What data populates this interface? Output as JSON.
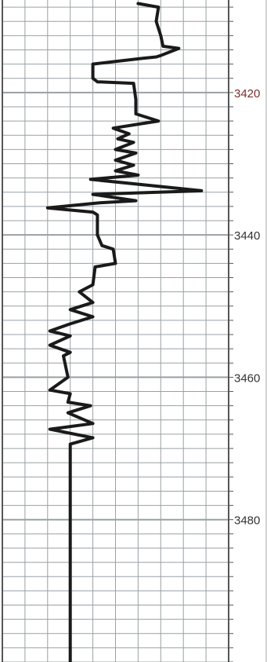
{
  "chart_data": {
    "type": "line",
    "orientation": "vertical-depth",
    "ylim": [
      3407,
      3500
    ],
    "xlim": [
      0,
      10
    ],
    "grid": true,
    "y_ticks": [
      {
        "value": 3420,
        "label": "3420"
      },
      {
        "value": 3440,
        "label": "3440"
      },
      {
        "value": 3460,
        "label": "3460"
      },
      {
        "value": 3480,
        "label": "3480"
      }
    ],
    "colors": {
      "curve": "#1a1a1a",
      "grid": "#9aa0a4",
      "label": "#333333",
      "label_accent": "#7a2e2e",
      "track_border": "#555555"
    },
    "series": [
      {
        "points": [
          [
            6.0,
            3407.5
          ],
          [
            6.9,
            3408.0
          ],
          [
            6.8,
            3410
          ],
          [
            7.0,
            3412
          ],
          [
            7.1,
            3413.5
          ],
          [
            7.8,
            3413.8
          ],
          [
            7.0,
            3414.8
          ],
          [
            6.8,
            3415.0
          ],
          [
            6.2,
            3415.2
          ],
          [
            4.0,
            3416.0
          ],
          [
            4.0,
            3418.0
          ],
          [
            4.2,
            3418.5
          ],
          [
            5.8,
            3418.7
          ],
          [
            5.9,
            3421.0
          ],
          [
            5.9,
            3423.0
          ],
          [
            6.9,
            3424.0
          ],
          [
            5.9,
            3424.5
          ],
          [
            4.9,
            3425.0
          ],
          [
            5.6,
            3425.8
          ],
          [
            5.1,
            3426.5
          ],
          [
            5.8,
            3427.0
          ],
          [
            5.0,
            3428.0
          ],
          [
            5.9,
            3428.5
          ],
          [
            5.0,
            3429.5
          ],
          [
            5.8,
            3430.2
          ],
          [
            5.0,
            3431.0
          ],
          [
            6.0,
            3431.6
          ],
          [
            3.9,
            3432.2
          ],
          [
            8.8,
            3433.8
          ],
          [
            4.0,
            3434.3
          ],
          [
            5.9,
            3435.2
          ],
          [
            4.3,
            3435.5
          ],
          [
            2.0,
            3436.2
          ],
          [
            4.0,
            3436.8
          ],
          [
            4.2,
            3437.2
          ],
          [
            4.2,
            3440.0
          ],
          [
            4.4,
            3441.5
          ],
          [
            4.9,
            3442.0
          ],
          [
            5.0,
            3444.0
          ],
          [
            4.1,
            3444.5
          ],
          [
            4.0,
            3447.0
          ],
          [
            3.4,
            3448.0
          ],
          [
            4.0,
            3449.5
          ],
          [
            3.0,
            3450.5
          ],
          [
            4.0,
            3451.5
          ],
          [
            3.0,
            3452.5
          ],
          [
            2.1,
            3453.5
          ],
          [
            3.0,
            3454.2
          ],
          [
            2.1,
            3455.5
          ],
          [
            3.0,
            3456.5
          ],
          [
            2.7,
            3457.0
          ],
          [
            2.9,
            3460.0
          ],
          [
            2.1,
            3461.8
          ],
          [
            3.0,
            3462.3
          ],
          [
            2.9,
            3463.5
          ],
          [
            3.9,
            3464.0
          ],
          [
            2.9,
            3465.0
          ],
          [
            4.0,
            3466.5
          ],
          [
            2.1,
            3467.3
          ],
          [
            4.0,
            3468.5
          ],
          [
            3.0,
            3469.4
          ],
          [
            3.0,
            3470.0
          ],
          [
            3.0,
            3500.0
          ]
        ]
      }
    ]
  }
}
